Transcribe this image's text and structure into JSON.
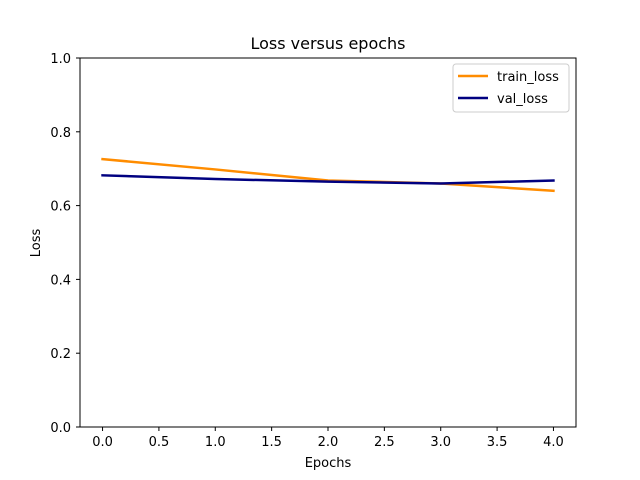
{
  "chart_data": {
    "type": "line",
    "title": "Loss versus epochs",
    "xlabel": "Epochs",
    "ylabel": "Loss",
    "xlim": [
      -0.2,
      4.2
    ],
    "ylim": [
      0.0,
      1.0
    ],
    "xticks": [
      0.0,
      0.5,
      1.0,
      1.5,
      2.0,
      2.5,
      3.0,
      3.5,
      4.0
    ],
    "xtick_labels": [
      "0.0",
      "0.5",
      "1.0",
      "1.5",
      "2.0",
      "2.5",
      "3.0",
      "3.5",
      "4.0"
    ],
    "yticks": [
      0.0,
      0.2,
      0.4,
      0.6,
      0.8,
      1.0
    ],
    "ytick_labels": [
      "0.0",
      "0.2",
      "0.4",
      "0.6",
      "0.8",
      "1.0"
    ],
    "grid": false,
    "legend_position": "top-right",
    "x": [
      0,
      1,
      2,
      3,
      4
    ],
    "series": [
      {
        "name": "train_loss",
        "color": "#ff8c00",
        "values": [
          0.726,
          0.698,
          0.668,
          0.66,
          0.64
        ]
      },
      {
        "name": "val_loss",
        "color": "#000080",
        "values": [
          0.682,
          0.672,
          0.665,
          0.66,
          0.668
        ]
      }
    ]
  }
}
